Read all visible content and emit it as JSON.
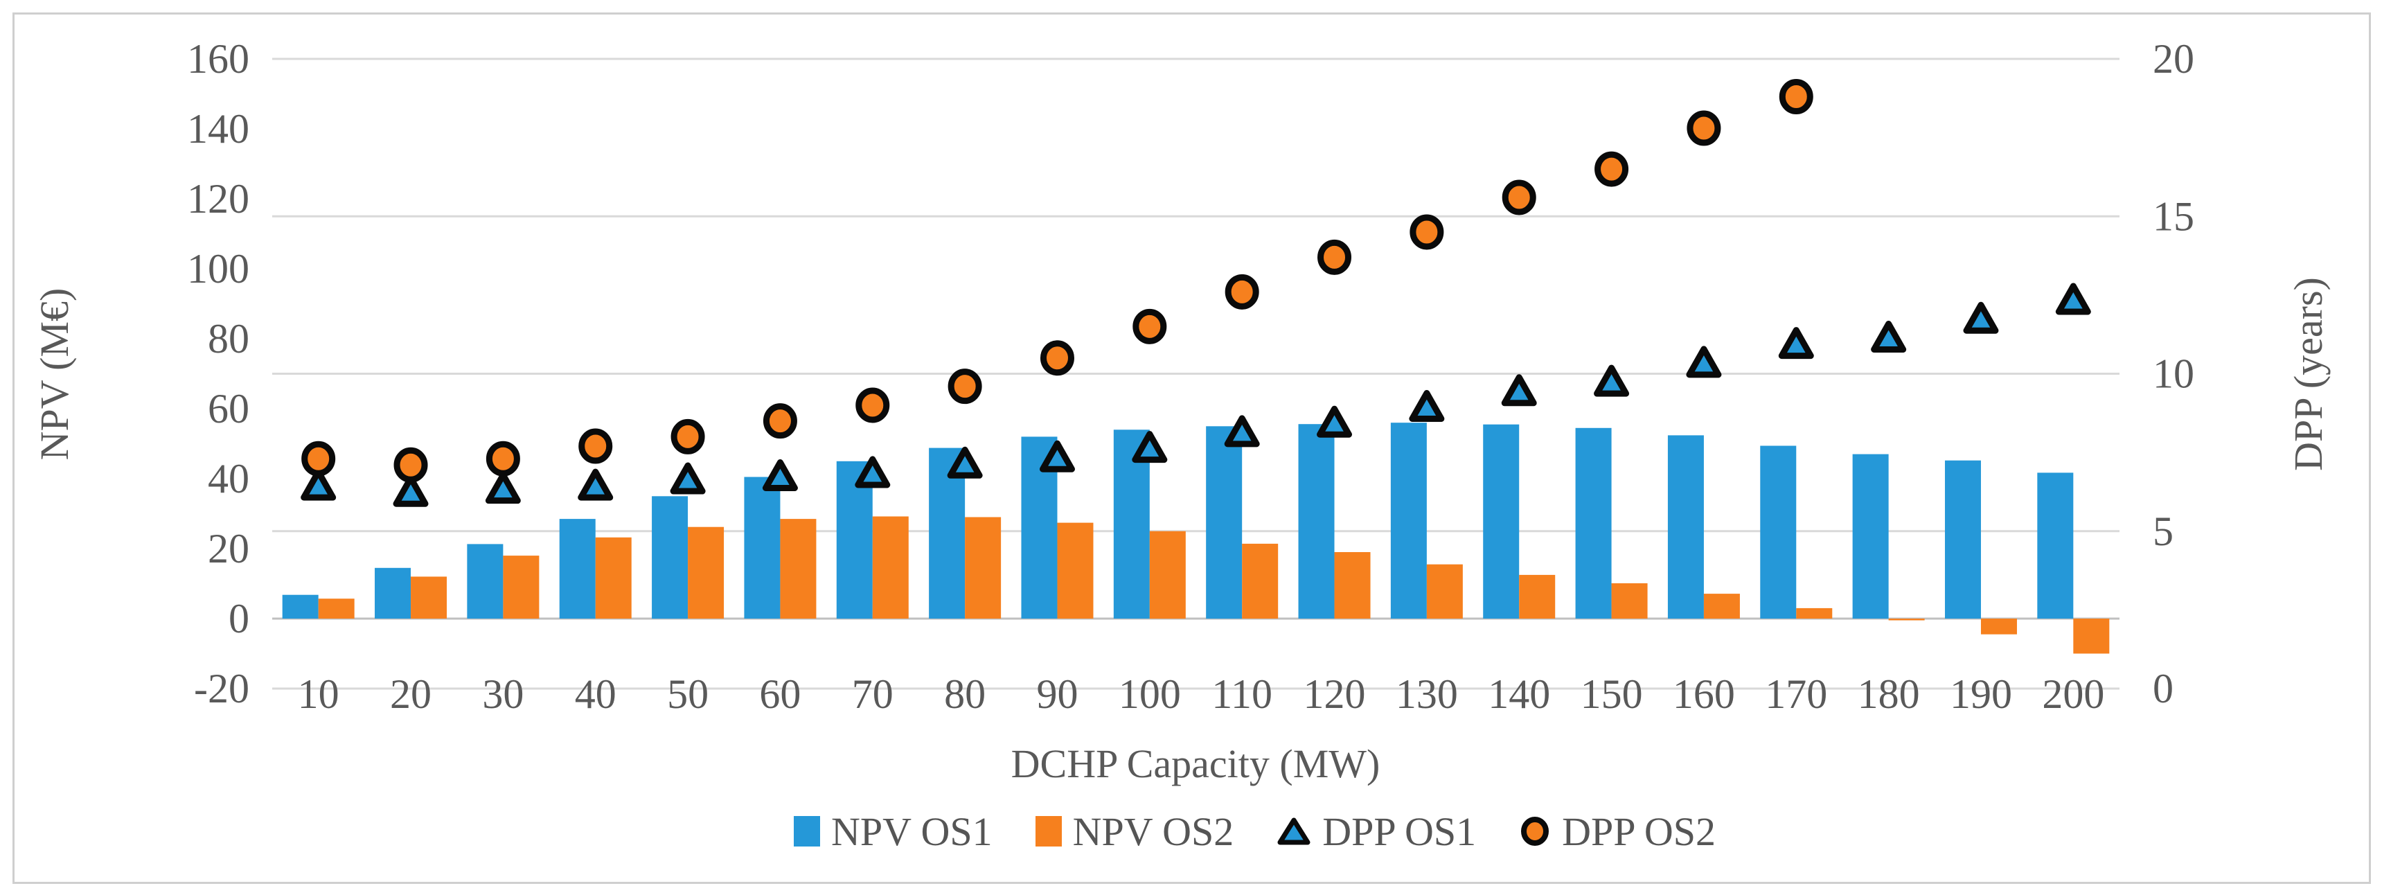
{
  "figure": {
    "background": "#ffffff",
    "border_color": "#cfcfcf"
  },
  "chart_data": {
    "type": "combo (bar + scatter, dual axis)",
    "title": "",
    "categories": [
      10,
      20,
      30,
      40,
      50,
      60,
      70,
      80,
      90,
      100,
      110,
      120,
      130,
      140,
      150,
      160,
      170,
      180,
      190,
      200
    ],
    "x_axis": {
      "title": "DCHP Capacity (MW)"
    },
    "left_axis": {
      "title": "NPV (M€)",
      "min": -20,
      "max": 160,
      "step": 20,
      "ticks": [
        160,
        140,
        120,
        100,
        80,
        60,
        40,
        20,
        0,
        -20
      ]
    },
    "right_axis": {
      "title": "DPP (years)",
      "min": 0,
      "max": 20,
      "step": 5,
      "ticks": [
        20,
        15,
        10,
        5,
        0
      ]
    },
    "grid": "horizontal gridlines at right-axis majors (0,5,10,15,20 years); darker baseline at NPV = 0",
    "legend_position": "bottom",
    "colors": {
      "blue": "#2598D8",
      "orange": "#F6801E",
      "marker_outline": "#0a0a0a",
      "gridline": "#d9d9d9",
      "baseline": "#c0c0c0",
      "text": "#595959"
    },
    "series": [
      {
        "name": "NPV OS1",
        "type": "bar",
        "axis": "left",
        "color": "#2598D8",
        "values": [
          6.8,
          14.5,
          21.3,
          28.5,
          35.0,
          40.5,
          45.0,
          48.8,
          52.0,
          54.0,
          55.0,
          55.6,
          56.0,
          55.5,
          54.5,
          52.4,
          49.4,
          47.0,
          45.2,
          41.7
        ]
      },
      {
        "name": "NPV OS2",
        "type": "bar",
        "axis": "left",
        "color": "#F6801E",
        "values": [
          5.7,
          12.0,
          18.0,
          23.2,
          26.2,
          28.5,
          29.2,
          29.0,
          27.4,
          25.0,
          21.4,
          19.0,
          15.5,
          12.5,
          10.1,
          7.1,
          3.0,
          -0.5,
          -4.5,
          -10.0
        ]
      },
      {
        "name": "DPP OS1",
        "type": "scatter",
        "marker": "triangle",
        "axis": "right",
        "fill": "#2598D8",
        "stroke": "#0a0a0a",
        "values": [
          6.4,
          6.2,
          6.3,
          6.4,
          6.6,
          6.7,
          6.8,
          7.1,
          7.3,
          7.6,
          8.1,
          8.4,
          8.9,
          9.4,
          9.7,
          10.3,
          10.9,
          11.1,
          11.7,
          12.3
        ]
      },
      {
        "name": "DPP OS2",
        "type": "scatter",
        "marker": "circle",
        "axis": "right",
        "fill": "#F6801E",
        "stroke": "#0a0a0a",
        "values": [
          7.3,
          7.1,
          7.3,
          7.7,
          8.0,
          8.5,
          9.0,
          9.6,
          10.5,
          11.5,
          12.6,
          13.7,
          14.5,
          15.6,
          16.5,
          17.8,
          18.8,
          null,
          null,
          null
        ]
      }
    ]
  }
}
